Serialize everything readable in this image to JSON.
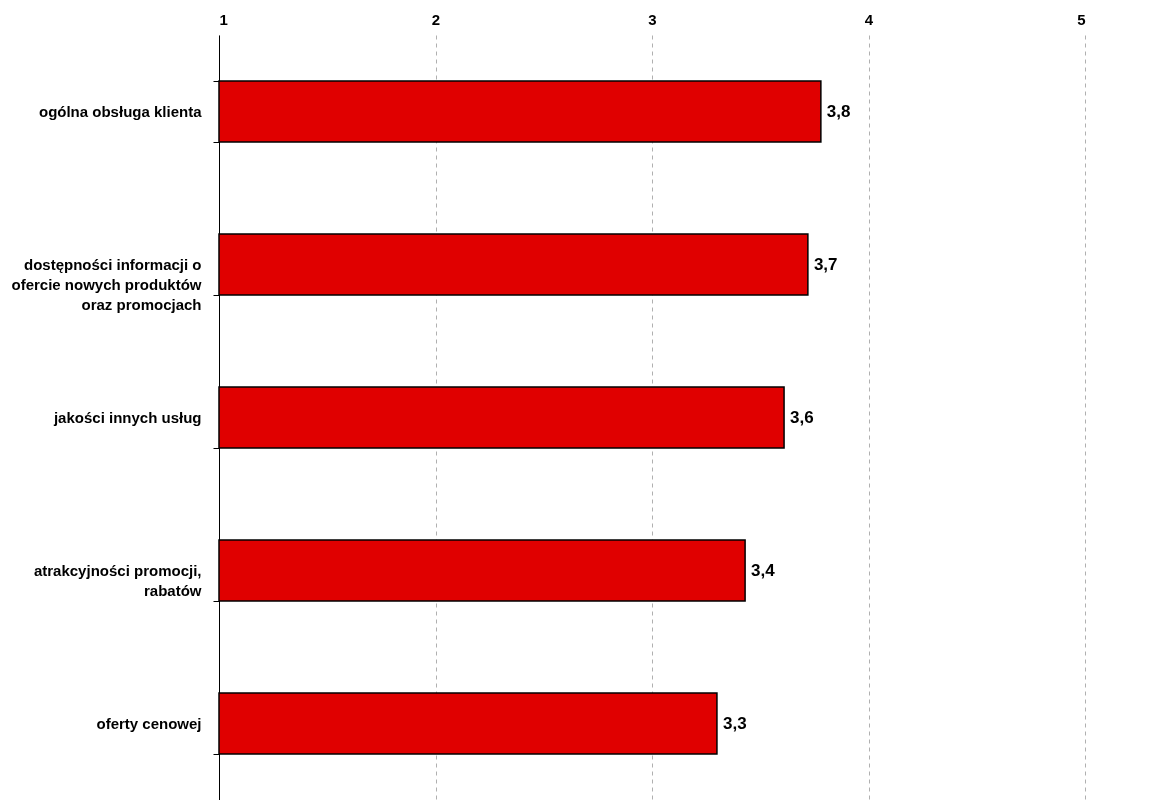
{
  "chart_data": {
    "type": "bar",
    "orientation": "horizontal",
    "categories": [
      "ogólna obsługa klienta",
      "dostępności informacji o ofercie nowych produktów oraz promocjach",
      "jakości innych usług",
      "atrakcyjności promocji, rabatów",
      "oferty cenowej"
    ],
    "values": [
      3.78,
      3.72,
      3.61,
      3.43,
      3.3
    ],
    "value_labels": [
      "3,8",
      "3,7",
      "3,6",
      "3,4",
      "3,3"
    ],
    "color": "#e00000",
    "xlim": [
      1,
      5
    ],
    "xticks": [
      1,
      2,
      3,
      4,
      5
    ],
    "grid": "x"
  }
}
